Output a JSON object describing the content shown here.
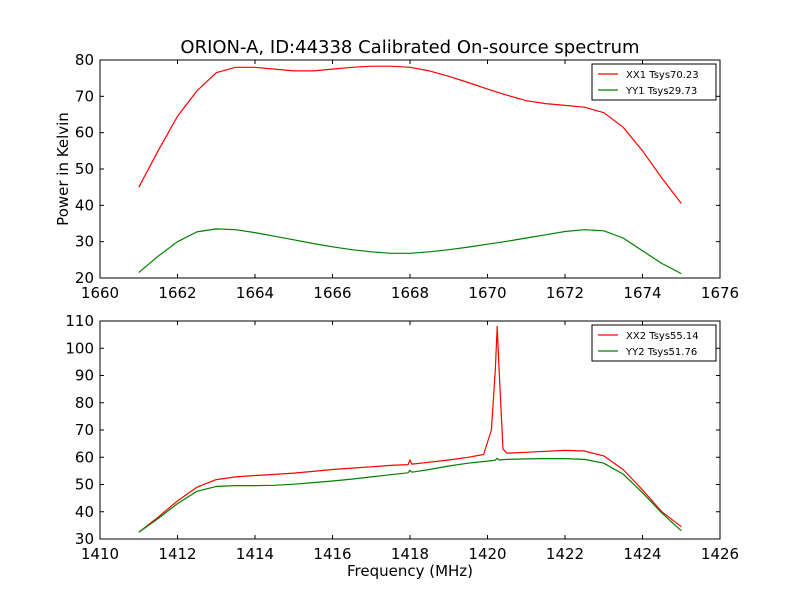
{
  "figure": {
    "title": "ORION-A, ID:44338 Calibrated On-source spectrum"
  },
  "chart_data": [
    {
      "type": "line",
      "title": "ORION-A, ID:44338 Calibrated On-source spectrum",
      "xlabel": "",
      "ylabel": "Power in Kelvin",
      "xlim": [
        1660,
        1676
      ],
      "ylim": [
        20,
        80
      ],
      "xticks": [
        1660,
        1662,
        1664,
        1666,
        1668,
        1670,
        1672,
        1674,
        1676
      ],
      "yticks": [
        20,
        30,
        40,
        50,
        60,
        70,
        80
      ],
      "grid": false,
      "legend": "top-right",
      "series": [
        {
          "name": "XX1 Tsys70.23",
          "color": "#ff0000",
          "x": [
            1661.0,
            1661.5,
            1662.0,
            1662.5,
            1663.0,
            1663.5,
            1664.0,
            1664.5,
            1665.0,
            1665.5,
            1666.0,
            1666.5,
            1667.0,
            1667.5,
            1668.0,
            1668.5,
            1669.0,
            1669.5,
            1670.0,
            1670.5,
            1671.0,
            1671.5,
            1672.0,
            1672.5,
            1673.0,
            1673.5,
            1674.0,
            1674.5,
            1675.0
          ],
          "y": [
            45.0,
            55.0,
            64.5,
            71.5,
            76.5,
            78.0,
            78.0,
            77.5,
            77.0,
            77.0,
            77.5,
            78.0,
            78.3,
            78.3,
            78.0,
            77.0,
            75.5,
            73.8,
            72.0,
            70.3,
            68.8,
            68.0,
            67.5,
            67.0,
            65.5,
            61.5,
            55.0,
            47.5,
            40.5
          ]
        },
        {
          "name": "YY1 Tsys29.73",
          "color": "#008000",
          "x": [
            1661.0,
            1661.5,
            1662.0,
            1662.5,
            1663.0,
            1663.5,
            1664.0,
            1664.5,
            1665.0,
            1665.5,
            1666.0,
            1666.5,
            1667.0,
            1667.5,
            1668.0,
            1668.5,
            1669.0,
            1669.5,
            1670.0,
            1670.5,
            1671.0,
            1671.5,
            1672.0,
            1672.5,
            1673.0,
            1673.5,
            1674.0,
            1674.5,
            1675.0
          ],
          "y": [
            21.5,
            26.0,
            30.0,
            32.7,
            33.5,
            33.3,
            32.5,
            31.5,
            30.5,
            29.5,
            28.6,
            27.8,
            27.2,
            26.8,
            26.8,
            27.2,
            27.8,
            28.5,
            29.3,
            30.1,
            31.0,
            31.9,
            32.8,
            33.3,
            33.0,
            31.0,
            27.5,
            24.0,
            21.2
          ]
        }
      ]
    },
    {
      "type": "line",
      "title": "",
      "xlabel": "Frequency (MHz)",
      "ylabel": "",
      "xlim": [
        1410,
        1426
      ],
      "ylim": [
        30,
        110
      ],
      "xticks": [
        1410,
        1412,
        1414,
        1416,
        1418,
        1420,
        1422,
        1424,
        1426
      ],
      "yticks": [
        30,
        40,
        50,
        60,
        70,
        80,
        90,
        100,
        110
      ],
      "grid": false,
      "legend": "top-right",
      "series": [
        {
          "name": "XX2 Tsys55.14",
          "color": "#ff0000",
          "x": [
            1411.0,
            1411.5,
            1412.0,
            1412.5,
            1413.0,
            1413.5,
            1414.0,
            1414.5,
            1415.0,
            1415.5,
            1416.0,
            1416.5,
            1417.0,
            1417.5,
            1417.95,
            1418.0,
            1418.05,
            1418.5,
            1419.0,
            1419.5,
            1419.9,
            1420.1,
            1420.2,
            1420.25,
            1420.3,
            1420.4,
            1420.5,
            1421.0,
            1421.5,
            1422.0,
            1422.5,
            1423.0,
            1423.5,
            1424.0,
            1424.5,
            1425.0
          ],
          "y": [
            32.5,
            38.0,
            44.0,
            49.0,
            51.8,
            52.8,
            53.3,
            53.7,
            54.2,
            54.8,
            55.5,
            56.0,
            56.5,
            57.0,
            57.3,
            59.0,
            57.5,
            58.2,
            59.0,
            60.0,
            61.0,
            70.0,
            92.0,
            108.0,
            92.0,
            63.0,
            61.5,
            61.8,
            62.2,
            62.5,
            62.3,
            60.5,
            55.5,
            48.0,
            40.0,
            34.5
          ]
        },
        {
          "name": "YY2 Tsys51.76",
          "color": "#008000",
          "x": [
            1411.0,
            1411.5,
            1412.0,
            1412.5,
            1413.0,
            1413.5,
            1414.0,
            1414.5,
            1415.0,
            1415.5,
            1416.0,
            1416.5,
            1417.0,
            1417.5,
            1417.95,
            1418.0,
            1418.05,
            1418.5,
            1419.0,
            1419.5,
            1420.0,
            1420.2,
            1420.25,
            1420.3,
            1420.5,
            1421.0,
            1421.5,
            1422.0,
            1422.5,
            1423.0,
            1423.5,
            1424.0,
            1424.5,
            1425.0
          ],
          "y": [
            32.5,
            37.5,
            43.0,
            47.5,
            49.3,
            49.6,
            49.6,
            49.7,
            50.1,
            50.7,
            51.3,
            52.0,
            52.8,
            53.6,
            54.3,
            55.2,
            54.5,
            55.5,
            56.8,
            57.8,
            58.6,
            58.9,
            59.6,
            59.0,
            59.2,
            59.4,
            59.5,
            59.5,
            59.2,
            57.8,
            53.8,
            47.0,
            39.5,
            33.0
          ]
        }
      ]
    }
  ]
}
